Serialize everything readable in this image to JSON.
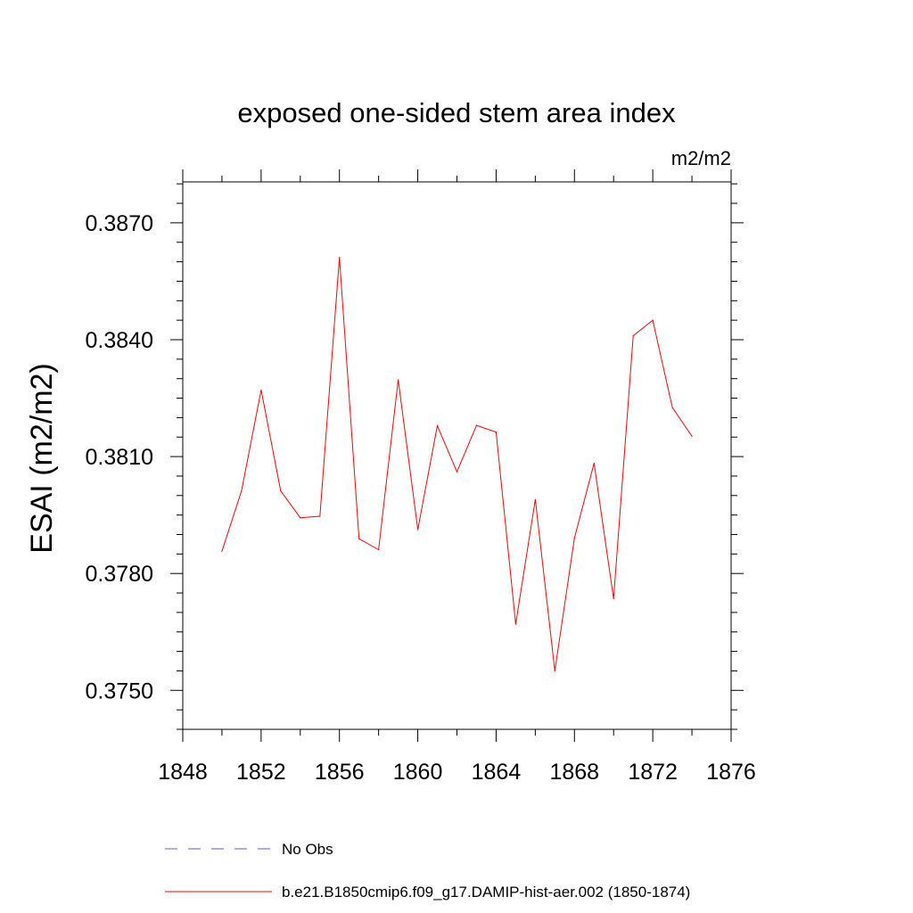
{
  "chart_data": {
    "type": "line",
    "title": "exposed one-sided stem area index",
    "units": "m2/m2",
    "ylabel": "ESAI  (m2/m2)",
    "xlabel": "",
    "xlim": [
      1848,
      1876
    ],
    "ylim": [
      0.374,
      0.38805
    ],
    "xticks": [
      1848,
      1852,
      1856,
      1860,
      1864,
      1868,
      1872,
      1876
    ],
    "xtick_labels": [
      "1848",
      "1852",
      "1856",
      "1860",
      "1864",
      "1868",
      "1872",
      "1876"
    ],
    "yticks": [
      0.375,
      0.378,
      0.381,
      0.384,
      0.387
    ],
    "ytick_labels": [
      "0.3750",
      "0.3780",
      "0.3810",
      "0.3840",
      "0.3870"
    ],
    "grid": false,
    "legend_placement": "bottom",
    "series": [
      {
        "name": "b.e21.B1850cmip6.f09_g17.DAMIP-hist-aer.002 (1850-1874)",
        "color": "#ff0000",
        "style": "solid",
        "x": [
          1850,
          1851,
          1852,
          1853,
          1854,
          1855,
          1856,
          1857,
          1858,
          1859,
          1860,
          1861,
          1862,
          1863,
          1864,
          1865,
          1866,
          1867,
          1868,
          1869,
          1870,
          1871,
          1872,
          1873,
          1874
        ],
        "y": [
          0.37857,
          0.38012,
          0.38271,
          0.38012,
          0.37943,
          0.37947,
          0.38611,
          0.37889,
          0.37861,
          0.38297,
          0.37913,
          0.38179,
          0.38061,
          0.3818,
          0.38163,
          0.3767,
          0.3799,
          0.3755,
          0.37891,
          0.38083,
          0.37735,
          0.3841,
          0.3845,
          0.38226,
          0.38152
        ]
      }
    ],
    "legend": [
      {
        "label": "No Obs",
        "color": "#5a5ad0",
        "style": "dashed"
      },
      {
        "label": "b.e21.B1850cmip6.f09_g17.DAMIP-hist-aer.002 (1850-1874)",
        "color": "#ff0000",
        "style": "solid"
      }
    ]
  }
}
